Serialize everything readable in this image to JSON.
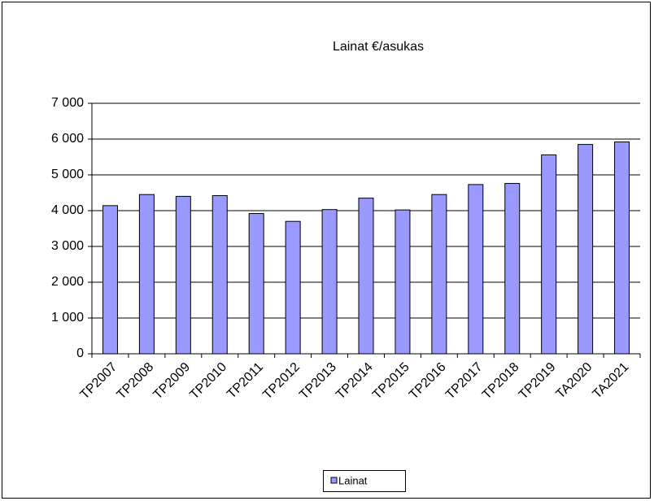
{
  "chart_data": {
    "type": "bar",
    "title": "Lainat €/asukas",
    "categories": [
      "TP2007",
      "TP2008",
      "TP2009",
      "TP2010",
      "TP2011",
      "TP2012",
      "TP2013",
      "TP2014",
      "TP2015",
      "TP2016",
      "TP2017",
      "TP2018",
      "TP2019",
      "TA2020",
      "TA2021"
    ],
    "series": [
      {
        "name": "Lainat",
        "color": "#9999ff",
        "values": [
          4140,
          4450,
          4400,
          4420,
          3920,
          3700,
          4030,
          4350,
          4020,
          4450,
          4730,
          4760,
          5560,
          5850,
          5920
        ]
      }
    ],
    "ylim": [
      0,
      7000
    ],
    "yticks": [
      0,
      {
        "value": 1000,
        "label": "1 000"
      },
      {
        "value": 2000,
        "label": "2 000"
      },
      {
        "value": 3000,
        "label": "3 000"
      },
      {
        "value": 4000,
        "label": "4 000"
      },
      {
        "value": 5000,
        "label": "5 000"
      },
      {
        "value": 6000,
        "label": "6 000"
      },
      {
        "value": 7000,
        "label": "7 000"
      }
    ],
    "grid": true,
    "legend": "bottom"
  }
}
